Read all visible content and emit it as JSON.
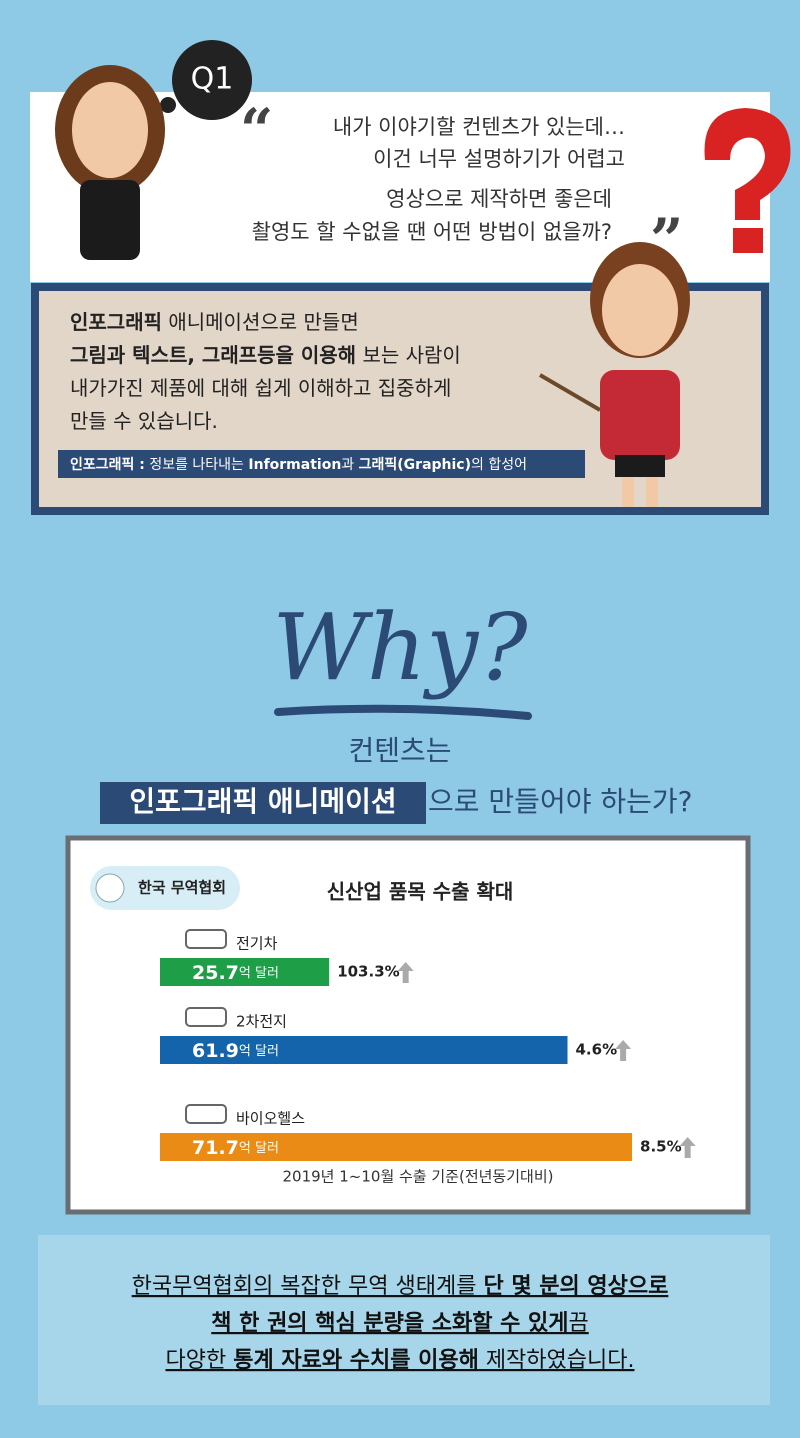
{
  "badge": "Q1",
  "question": {
    "open_quote": "“",
    "close_quote": "”",
    "lines": [
      "내가 이야기할 컨텐츠가 있는데…",
      "이건 너무 설명하기가 어렵고",
      "영상으로 제작하면 좋은데",
      "촬영도 할 수없을 땐 어떤 방법이 없을까?"
    ]
  },
  "answer": {
    "lines": [
      [
        {
          "text": "인포그래픽",
          "bold": true
        },
        {
          "text": " 애니메이션으로 만들면"
        }
      ],
      [
        {
          "text": "그림과 텍스트, 그래프등을 이용해",
          "bold": true
        },
        {
          "text": " 보는 사람이"
        }
      ],
      [
        {
          "text": "내가가진 제품에 대해 쉽게 이해하고 집중하게"
        }
      ],
      [
        {
          "text": "만들 수 있습니다."
        }
      ]
    ],
    "note": [
      {
        "text": "인포그래픽 :",
        "bold": true
      },
      {
        "text": " 정보를 나타내는 "
      },
      {
        "text": "Information",
        "bold": true
      },
      {
        "text": "과 "
      },
      {
        "text": "그래픽(Graphic)",
        "bold": true
      },
      {
        "text": "의 합성어"
      }
    ]
  },
  "why": {
    "title": "Why?",
    "line1": "컨텐츠는",
    "highlight": "인포그래픽 애니메이션",
    "rest": "으로 만들어야 하는가?"
  },
  "chart_data": {
    "type": "bar",
    "orientation": "horizontal",
    "title": "신산업 품목 수출 확대",
    "source": "한국 무역협회",
    "categories": [
      "전기차",
      "2차전지",
      "바이오헬스"
    ],
    "values": [
      25.7,
      61.9,
      71.7
    ],
    "value_unit": "억 달러",
    "colors": [
      "#1f9e48",
      "#1464ac",
      "#e98b14"
    ],
    "xlim": [
      0,
      72
    ],
    "growth": {
      "values": [
        103.3,
        4.6,
        8.5
      ],
      "value_labels": [
        "103.3%",
        "4.6%",
        "8.5%"
      ]
    },
    "note": "2019년 1~10월 수출 기준(전년동기대비)"
  },
  "summary": {
    "lines": [
      [
        {
          "text": "한국무역협회의 복잡한 무역 생태계를 "
        },
        {
          "text": "단 몇 분의 영상으로",
          "bold": true
        }
      ],
      [
        {
          "text": "책 한 권의 핵심 분량을 소화할 수 있게",
          "bold": true
        },
        {
          "text": "끔"
        }
      ],
      [
        {
          "text": "다양한 "
        },
        {
          "text": "통계 자료와 수치를 이용해",
          "bold": true
        },
        {
          "text": " 제작하였습니다."
        }
      ]
    ]
  }
}
